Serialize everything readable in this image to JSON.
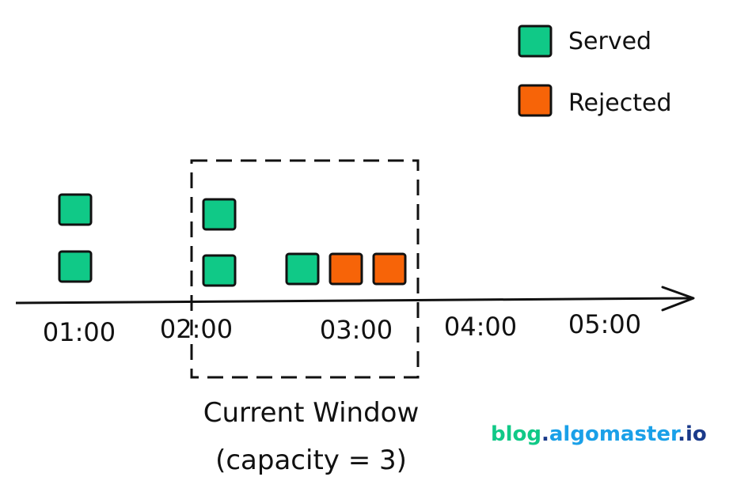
{
  "legend": {
    "items": [
      {
        "label": "Served",
        "color": "#10c987"
      },
      {
        "label": "Rejected",
        "color": "#f76408"
      }
    ]
  },
  "timeline": {
    "ticks": [
      "01:00",
      "02:00",
      "03:00",
      "04:00",
      "05:00"
    ]
  },
  "requests": [
    {
      "time": "01:00",
      "status": "served"
    },
    {
      "time": "01:00",
      "status": "served"
    },
    {
      "time": "02:00",
      "status": "served"
    },
    {
      "time": "02:00",
      "status": "served"
    },
    {
      "time": "02:30",
      "status": "served"
    },
    {
      "time": "02:45",
      "status": "rejected"
    },
    {
      "time": "03:00",
      "status": "rejected"
    }
  ],
  "window": {
    "caption_line1": "Current Window",
    "caption_line2": "(capacity = 3)"
  },
  "brand": {
    "part1": "blog",
    "dot1": ".",
    "part2": "algomaster",
    "dot2": ".",
    "part3": "io",
    "color1": "#10c987",
    "color2": "#1aa0e8",
    "color3": "#1a3a8a"
  }
}
